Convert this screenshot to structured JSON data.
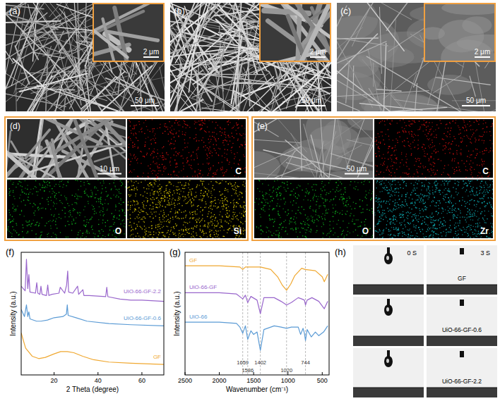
{
  "panels": {
    "a": {
      "label": "(a)",
      "scale_bar": "50 μm",
      "inset_scale_bar": "2 μm"
    },
    "b": {
      "label": "(b)",
      "scale_bar": "50 μm",
      "inset_scale_bar": "2 μm"
    },
    "c": {
      "label": "(c)",
      "scale_bar": "50 μm",
      "inset_scale_bar": "2 μm"
    },
    "d": {
      "label": "(d)",
      "scale_bar": "10 μm",
      "maps": [
        "C",
        "O",
        "Si"
      ]
    },
    "e": {
      "label": "(e)",
      "scale_bar": "50 μm",
      "maps": [
        "C",
        "O",
        "Zr"
      ]
    },
    "h": {
      "label": "(h)",
      "times": [
        "0 S",
        "3 S"
      ],
      "samples": [
        "GF",
        "UiO-66-GF-0.6",
        "UiO-66-GF-2.2"
      ]
    }
  },
  "chart_data": [
    {
      "type": "line",
      "title": "(f)",
      "x_label": "2 Theta (degree)",
      "y_label": "Intensity (a.u.)",
      "xlim": [
        5,
        70
      ],
      "xticks": [
        20,
        40,
        60
      ],
      "ylim": [
        0,
        10.5
      ],
      "tick_labels": "x",
      "series": [
        {
          "name": "GF",
          "color": "#f0a830",
          "x": [
            5,
            7,
            10,
            13,
            16,
            20,
            23,
            26,
            29,
            33,
            38,
            45,
            55,
            70
          ],
          "values": [
            3.6,
            2.3,
            1.6,
            1.4,
            1.5,
            1.8,
            2.0,
            2.0,
            1.9,
            1.6,
            1.3,
            1.1,
            1.0,
            0.9
          ]
        },
        {
          "name": "UiO-66-GF-0.6",
          "color": "#5b9bd5",
          "x": [
            5,
            6.5,
            7.4,
            8,
            8.5,
            9,
            12,
            14,
            17,
            20,
            24,
            25.6,
            26.0,
            26.4,
            30,
            35,
            45,
            55,
            70
          ],
          "values": [
            5.6,
            5.0,
            6.0,
            5.0,
            5.4,
            4.8,
            4.6,
            4.6,
            4.7,
            4.9,
            5.0,
            5.2,
            6.0,
            5.1,
            4.9,
            4.6,
            4.4,
            4.3,
            4.2
          ]
        },
        {
          "name": "UiO-66-GF-2.2",
          "color": "#9966cc",
          "x": [
            5,
            6.8,
            7.4,
            8,
            8.5,
            9,
            11.5,
            12.1,
            12.6,
            13.5,
            14.0,
            14.5,
            16.5,
            17.1,
            17.6,
            19,
            22.2,
            22.8,
            24.8,
            25.7,
            26.2,
            26.6,
            28.5,
            30.7,
            31.2,
            33.1,
            33.6,
            36,
            43.5,
            44,
            44.5,
            50,
            55,
            60,
            70
          ],
          "values": [
            7.6,
            7.2,
            9.9,
            7.4,
            8.6,
            7.1,
            7.0,
            7.9,
            7.0,
            6.9,
            7.6,
            6.9,
            6.8,
            7.7,
            6.8,
            6.9,
            7.0,
            7.5,
            7.0,
            7.7,
            8.9,
            7.1,
            7.0,
            7.6,
            6.9,
            7.3,
            6.8,
            6.8,
            6.7,
            7.5,
            6.7,
            6.5,
            6.4,
            6.4,
            6.3
          ]
        }
      ]
    },
    {
      "type": "line",
      "title": "(g)",
      "x_label": "Wavenumber (cm⁻¹)",
      "y_label": "Intensity (a.u.)",
      "xlim": [
        2500,
        400
      ],
      "xticks": [
        2500,
        2000,
        1500,
        1000,
        500
      ],
      "ylim": [
        0,
        10
      ],
      "tick_labels": "x",
      "vlines": [
        1659,
        1586,
        1402,
        1020,
        744
      ],
      "series": [
        {
          "name": "GF",
          "color": "#f0a830",
          "x": [
            2500,
            2000,
            1700,
            1659,
            1620,
            1400,
            1250,
            1150,
            1080,
            1020,
            960,
            900,
            800,
            750,
            600,
            500,
            470,
            420
          ],
          "values": [
            8.9,
            8.9,
            8.8,
            8.6,
            8.8,
            8.8,
            8.6,
            8.0,
            7.3,
            6.9,
            7.4,
            8.1,
            8.7,
            8.6,
            8.5,
            8.0,
            7.6,
            8.2
          ]
        },
        {
          "name": "UiO-66-GF",
          "color": "#9966cc",
          "x": [
            2500,
            2000,
            1750,
            1659,
            1620,
            1586,
            1540,
            1450,
            1402,
            1350,
            1200,
            1100,
            1020,
            950,
            850,
            800,
            760,
            744,
            720,
            650,
            550,
            470,
            420
          ],
          "values": [
            6.7,
            6.7,
            6.6,
            6.2,
            6.5,
            5.9,
            6.4,
            6.1,
            5.0,
            6.3,
            6.3,
            6.0,
            5.7,
            5.9,
            6.3,
            6.2,
            6.1,
            5.7,
            6.1,
            6.3,
            6.0,
            5.4,
            6.0
          ]
        },
        {
          "name": "UiO-66",
          "color": "#5b9bd5",
          "x": [
            2500,
            2000,
            1750,
            1700,
            1659,
            1620,
            1586,
            1540,
            1500,
            1450,
            1402,
            1350,
            1200,
            1100,
            1020,
            950,
            850,
            815,
            780,
            760,
            744,
            720,
            660,
            600,
            550,
            480,
            420
          ],
          "values": [
            4.3,
            4.3,
            4.2,
            3.9,
            3.4,
            4.0,
            2.9,
            3.6,
            3.3,
            3.5,
            2.0,
            3.7,
            4.0,
            3.9,
            3.8,
            3.9,
            3.9,
            3.3,
            3.8,
            3.4,
            2.8,
            3.7,
            3.1,
            3.5,
            3.2,
            3.5,
            4.0
          ]
        }
      ]
    }
  ]
}
